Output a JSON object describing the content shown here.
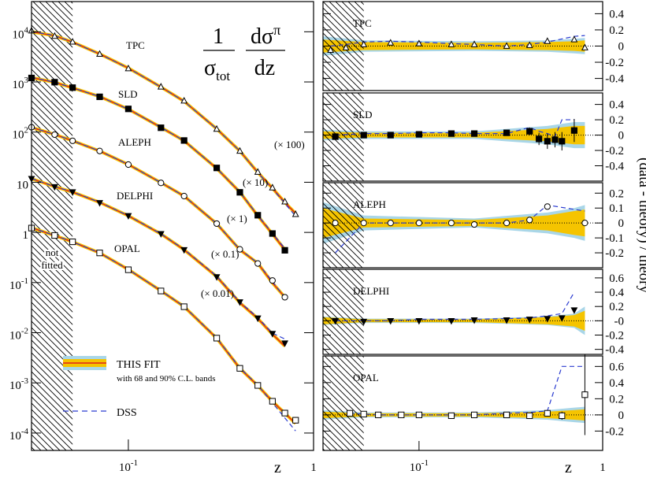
{
  "chart_data": [
    {
      "type": "line",
      "log_x": true,
      "log_y": true,
      "formula": {
        "num1": "1",
        "den1": "σ",
        "den1_sub": "tot",
        "num2": "dσ",
        "num2_sup": "π",
        "den2": "dz"
      },
      "xlabel": "z",
      "xlim": [
        0.03,
        1
      ],
      "ylim": [
        4.5e-05,
        40000
      ],
      "xticks": [
        {
          "value": 0.1,
          "label": "10",
          "sup": "-1"
        },
        1
      ],
      "yticks": [
        {
          "value": 10000,
          "label": "10",
          "sup": "4"
        },
        {
          "value": 1000,
          "label": "10",
          "sup": "3"
        },
        {
          "value": 100,
          "label": "10",
          "sup": "2"
        },
        10,
        1,
        {
          "value": 0.1,
          "label": "10",
          "sup": "-1"
        },
        {
          "value": 0.01,
          "label": "10",
          "sup": "-2"
        },
        {
          "value": 0.001,
          "label": "10",
          "sup": "-3"
        },
        {
          "value": 0.0001,
          "label": "10",
          "sup": "-4"
        }
      ],
      "excluded_below": 0.05,
      "excluded_label": [
        "not",
        "fitted"
      ],
      "band68_color": "#f5c400",
      "band90_color": "#a9d6e8",
      "legend": [
        {
          "name": "THIS FIT",
          "note": "with 68 and 90% C.L. bands",
          "color": "#e0201c"
        },
        {
          "name": "DSS",
          "color": "#2a3bd0"
        }
      ],
      "series": [
        {
          "name": "TPC",
          "scale_label": "(× 100)",
          "marker": "triangle-open",
          "x": [
            0.03,
            0.04,
            0.05,
            0.07,
            0.1,
            0.15,
            0.2,
            0.3,
            0.4,
            0.5,
            0.6,
            0.7,
            0.8
          ],
          "values": [
            10500,
            8200,
            6300,
            3600,
            1850,
            800,
            420,
            115,
            42,
            16,
            7.8,
            4.1,
            2.3
          ],
          "fit": [
            10000,
            8340,
            6230,
            3620,
            1890,
            791,
            411,
            116,
            41.9,
            15.7,
            7.6,
            3.97,
            2.39
          ],
          "dss": [
            10200,
            8400,
            6200,
            3600,
            1880,
            790,
            410,
            116,
            42,
            15.5,
            7.4,
            3.8,
            2.1
          ]
        },
        {
          "name": "SLD",
          "scale_label": "(× 10)",
          "marker": "square-filled",
          "x": [
            0.03,
            0.04,
            0.05,
            0.07,
            0.1,
            0.15,
            0.2,
            0.3,
            0.4,
            0.5,
            0.6,
            0.7
          ],
          "values": [
            1200,
            990,
            770,
            505,
            290,
            122,
            68,
            19.3,
            6.3,
            2.2,
            0.95,
            0.44
          ],
          "fit": [
            1222,
            981,
            762,
            511,
            286,
            124,
            67.1,
            18.9,
            6.36,
            2.14,
            0.93,
            0.451
          ],
          "dss": [
            1240,
            990,
            760,
            510,
            285,
            124,
            67,
            19,
            6.4,
            2.2,
            0.96,
            0.48
          ]
        },
        {
          "name": "ALEPH",
          "scale_label": "(× 1)",
          "marker": "circle-open",
          "x": [
            0.03,
            0.04,
            0.05,
            0.07,
            0.1,
            0.15,
            0.2,
            0.3,
            0.4,
            0.5,
            0.6,
            0.7
          ],
          "values": [
            125,
            89,
            67,
            42,
            22.5,
            9.7,
            5.3,
            1.5,
            0.46,
            0.24,
            0.11,
            0.051
          ],
          "fit": [
            124,
            89.8,
            67.1,
            41.9,
            22.6,
            9.82,
            5.3,
            1.49,
            0.451,
            0.243,
            0.0982,
            0.0512
          ],
          "dss": [
            124,
            90,
            67,
            42,
            22.6,
            9.8,
            5.3,
            1.5,
            0.46,
            0.245,
            0.105,
            0.05
          ]
        },
        {
          "name": "DELPHI",
          "scale_label": "(× 0.1)",
          "marker": "triangle-down-filled",
          "x": [
            0.03,
            0.04,
            0.05,
            0.07,
            0.1,
            0.15,
            0.2,
            0.3,
            0.4,
            0.5,
            0.6,
            0.7
          ],
          "values": [
            11.8,
            8.1,
            6.4,
            3.9,
            2.15,
            0.94,
            0.45,
            0.13,
            0.041,
            0.0195,
            0.0096,
            0.0062
          ],
          "fit": [
            11.8,
            8.18,
            6.36,
            3.97,
            2.14,
            0.93,
            0.451,
            0.131,
            0.0396,
            0.0192,
            0.0093,
            0.0054
          ],
          "dss": [
            11.9,
            8.2,
            6.4,
            4.0,
            2.15,
            0.94,
            0.46,
            0.135,
            0.041,
            0.02,
            0.0098,
            0.0075
          ]
        },
        {
          "name": "OPAL",
          "scale_label": "(× 0.01)",
          "marker": "square-open",
          "x": [
            0.03,
            0.04,
            0.05,
            0.07,
            0.1,
            0.15,
            0.2,
            0.3,
            0.4,
            0.5,
            0.6,
            0.7,
            0.8
          ],
          "values": [
            1.22,
            0.87,
            0.65,
            0.39,
            0.18,
            0.068,
            0.033,
            0.0078,
            0.00195,
            0.00089,
            0.00043,
            0.00025,
            0.00018
          ],
          "fit": [
            1.24,
            0.865,
            0.647,
            0.39,
            0.182,
            0.0684,
            0.0331,
            0.00776,
            0.00195,
            0.00088,
            0.000427,
            0.000248,
            0.000155
          ],
          "dss": [
            1.25,
            0.87,
            0.65,
            0.39,
            0.182,
            0.069,
            0.0335,
            0.0079,
            0.002,
            0.0009,
            0.0004,
            0.0002,
            0.00011
          ]
        }
      ]
    },
    {
      "type": "ratio",
      "name": "TPC",
      "marker": "triangle-open",
      "xlim": [
        0.03,
        1
      ],
      "ylim": [
        -0.55,
        0.55
      ],
      "excluded_below": 0.05,
      "yticks": [
        0.4,
        0.2,
        0,
        -0.2,
        -0.4
      ],
      "x": [
        0.033,
        0.04,
        0.05,
        0.07,
        0.1,
        0.15,
        0.2,
        0.3,
        0.4,
        0.5,
        0.7,
        0.8
      ],
      "values": [
        -0.05,
        -0.02,
        0.02,
        0.04,
        0.03,
        0.02,
        0.02,
        0,
        0.01,
        0.06,
        0.08,
        -0.02
      ],
      "dss": [
        0,
        0.02,
        0.05,
        0.06,
        0.05,
        0.03,
        0.02,
        0,
        0.02,
        0.05,
        0.12,
        0.13
      ],
      "band_x": [
        0.03,
        0.05,
        0.2,
        0.5,
        0.7,
        0.8
      ],
      "band68": [
        0.08,
        0.05,
        0.04,
        0.05,
        0.06,
        0.07
      ],
      "band90": [
        0.12,
        0.07,
        0.06,
        0.07,
        0.09,
        0.1
      ]
    },
    {
      "type": "ratio",
      "name": "SLD",
      "marker": "square-filled",
      "xlim": [
        0.03,
        1
      ],
      "ylim": [
        -0.6,
        0.55
      ],
      "excluded_below": 0.05,
      "yticks": [
        0.4,
        0.2,
        0,
        -0.2,
        -0.4
      ],
      "x": [
        0.035,
        0.05,
        0.07,
        0.1,
        0.15,
        0.2,
        0.3,
        0.4,
        0.45,
        0.5,
        0.55,
        0.6,
        0.7
      ],
      "values": [
        -0.02,
        0,
        0,
        0.01,
        0.02,
        0.02,
        0.03,
        0.05,
        -0.05,
        -0.08,
        -0.06,
        -0.08,
        0.06
      ],
      "errors": [
        0.03,
        0.02,
        0.02,
        0.02,
        0.02,
        0.02,
        0.03,
        0.05,
        0.08,
        0.1,
        0.1,
        0.12,
        0.15
      ],
      "dss": [
        0,
        0.02,
        0.02,
        0.03,
        0.03,
        0.02,
        0.02,
        0.1,
        0.05,
        0.02,
        -0.02,
        0.2,
        0.2
      ],
      "band_x": [
        0.03,
        0.05,
        0.2,
        0.5,
        0.7,
        0.8
      ],
      "band68": [
        0.05,
        0.03,
        0.03,
        0.08,
        0.12,
        0.12
      ],
      "band90": [
        0.07,
        0.05,
        0.05,
        0.12,
        0.17,
        0.17
      ]
    },
    {
      "type": "ratio",
      "name": "ALEPH",
      "marker": "circle-open",
      "xlim": [
        0.03,
        1
      ],
      "ylim": [
        -0.3,
        0.27
      ],
      "excluded_below": 0.05,
      "ylabel": "(data - theory) / theory",
      "yticks": [
        0.2,
        0.1,
        0,
        -0.1,
        -0.2
      ],
      "x": [
        0.035,
        0.05,
        0.07,
        0.1,
        0.15,
        0.2,
        0.3,
        0.4,
        0.5,
        0.8
      ],
      "values": [
        0,
        0,
        0,
        0,
        0,
        -0.01,
        0,
        0.02,
        0.11,
        0
      ],
      "dss": [
        -0.2,
        0,
        0,
        0,
        0,
        0,
        0,
        0.02,
        0.12,
        0.08
      ],
      "band_x": [
        0.03,
        0.05,
        0.2,
        0.5,
        0.7,
        0.8
      ],
      "band68": [
        0.1,
        0.03,
        0.02,
        0.05,
        0.08,
        0.09
      ],
      "band90": [
        0.14,
        0.05,
        0.03,
        0.07,
        0.1,
        0.12
      ]
    },
    {
      "type": "ratio",
      "name": "DELPHI",
      "marker": "triangle-down-filled",
      "xlim": [
        0.03,
        1
      ],
      "ylim": [
        -0.47,
        0.72
      ],
      "excluded_below": 0.05,
      "yticks": [
        0.6,
        0.4,
        0.2,
        {
          "value": 0,
          "label": "-0"
        },
        -0.2,
        -0.4
      ],
      "x": [
        0.035,
        0.05,
        0.07,
        0.1,
        0.15,
        0.2,
        0.3,
        0.4,
        0.5,
        0.6,
        0.7
      ],
      "values": [
        0,
        -0.01,
        0,
        0,
        0,
        0.01,
        0.01,
        0.02,
        0.03,
        0.04,
        0.15
      ],
      "dss": [
        0,
        0,
        0,
        0.02,
        0.02,
        0.02,
        0.03,
        0.04,
        0.07,
        0.1,
        0.4
      ],
      "band_x": [
        0.03,
        0.05,
        0.2,
        0.5,
        0.7,
        0.8
      ],
      "band68": [
        0.05,
        0.02,
        0.02,
        0.05,
        0.08,
        0.14
      ],
      "band90": [
        0.06,
        0.03,
        0.03,
        0.06,
        0.1,
        0.2
      ]
    },
    {
      "type": "ratio",
      "name": "OPAL",
      "marker": "square-open",
      "xlim": [
        0.03,
        1
      ],
      "ylim": [
        -0.44,
        0.73
      ],
      "excluded_below": 0.05,
      "xlabel": "z",
      "xticks": [
        {
          "value": 0.1,
          "label": "10",
          "sup": "-1"
        },
        1
      ],
      "yticks": [
        0.6,
        0.4,
        0.2,
        0,
        -0.2
      ],
      "x": [
        0.042,
        0.05,
        0.06,
        0.08,
        0.1,
        0.15,
        0.2,
        0.3,
        0.4,
        0.5,
        0.6,
        0.8
      ],
      "values": [
        0.02,
        0.01,
        0,
        0,
        0,
        -0.01,
        0,
        0,
        -0.01,
        0.02,
        -0.01,
        0.25
      ],
      "errors": [
        0.02,
        0.02,
        0.02,
        0.02,
        0.02,
        0.02,
        0.02,
        0.02,
        0.03,
        0.04,
        0.05,
        0.5
      ],
      "dss": [
        0.02,
        0.01,
        0,
        0,
        0,
        0,
        0,
        0.02,
        0.03,
        0.05,
        0.6,
        0.6
      ],
      "band_x": [
        0.03,
        0.05,
        0.2,
        0.5,
        0.7,
        0.8
      ],
      "band68": [
        0.04,
        0.02,
        0.02,
        0.04,
        0.06,
        0.07
      ],
      "band90": [
        0.06,
        0.03,
        0.03,
        0.06,
        0.09,
        0.1
      ]
    }
  ]
}
